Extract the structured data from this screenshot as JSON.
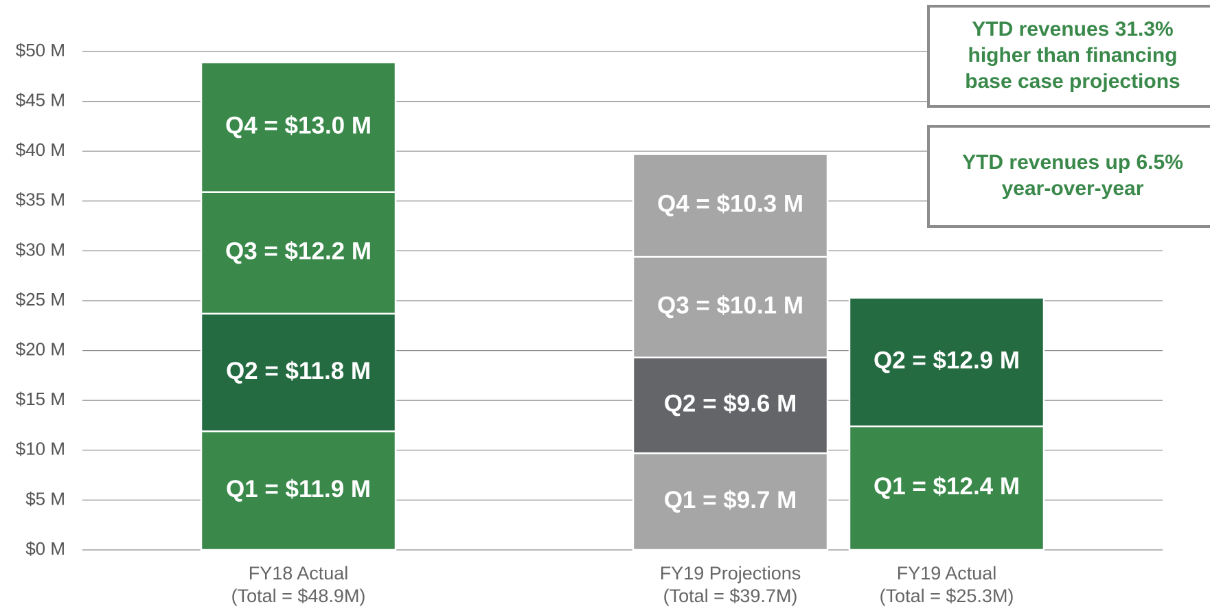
{
  "chart_data": {
    "type": "stacked_bar",
    "ylim": [
      0,
      50
    ],
    "yticks": [
      {
        "value": 0,
        "label": "$0 M"
      },
      {
        "value": 5,
        "label": "$5 M"
      },
      {
        "value": 10,
        "label": "$10 M"
      },
      {
        "value": 15,
        "label": "$15 M"
      },
      {
        "value": 20,
        "label": "$20 M"
      },
      {
        "value": 25,
        "label": "$25 M"
      },
      {
        "value": 30,
        "label": "$30 M"
      },
      {
        "value": 35,
        "label": "$35 M"
      },
      {
        "value": 40,
        "label": "$40 M"
      },
      {
        "value": 45,
        "label": "$45 M"
      },
      {
        "value": 50,
        "label": "$50 M"
      }
    ],
    "grid": true,
    "bars": [
      {
        "category": "FY18 Actual",
        "total_label": "(Total = $48.9M)",
        "segments": [
          {
            "value": 11.9,
            "label": "Q1 = $11.9 M",
            "color": "#3a894b"
          },
          {
            "value": 11.8,
            "label": "Q2 = $11.8 M",
            "color": "#256b42"
          },
          {
            "value": 12.2,
            "label": "Q3 = $12.2 M",
            "color": "#3a894b"
          },
          {
            "value": 13.0,
            "label": "Q4 = $13.0 M",
            "color": "#3a894b"
          }
        ]
      },
      {
        "category": "FY19 Projections",
        "total_label": "(Total = $39.7M)",
        "segments": [
          {
            "value": 9.7,
            "label": "Q1 = $9.7 M",
            "color": "#a6a6a6"
          },
          {
            "value": 9.6,
            "label": "Q2 = $9.6 M",
            "color": "#636569"
          },
          {
            "value": 10.1,
            "label": "Q3 = $10.1 M",
            "color": "#a6a6a6"
          },
          {
            "value": 10.3,
            "label": "Q4 = $10.3 M",
            "color": "#a6a6a6"
          }
        ]
      },
      {
        "category": "FY19 Actual",
        "total_label": "(Total = $25.3M)",
        "segments": [
          {
            "value": 12.4,
            "label": "Q1 = $12.4 M",
            "color": "#3a894b"
          },
          {
            "value": 12.9,
            "label": "Q2 = $12.9 M",
            "color": "#256b42"
          }
        ]
      }
    ],
    "annotations": [
      [
        "YTD revenues 31.3%",
        "higher than financing",
        "base case projections"
      ],
      [
        "YTD revenues up 6.5%",
        "year-over-year"
      ]
    ]
  }
}
